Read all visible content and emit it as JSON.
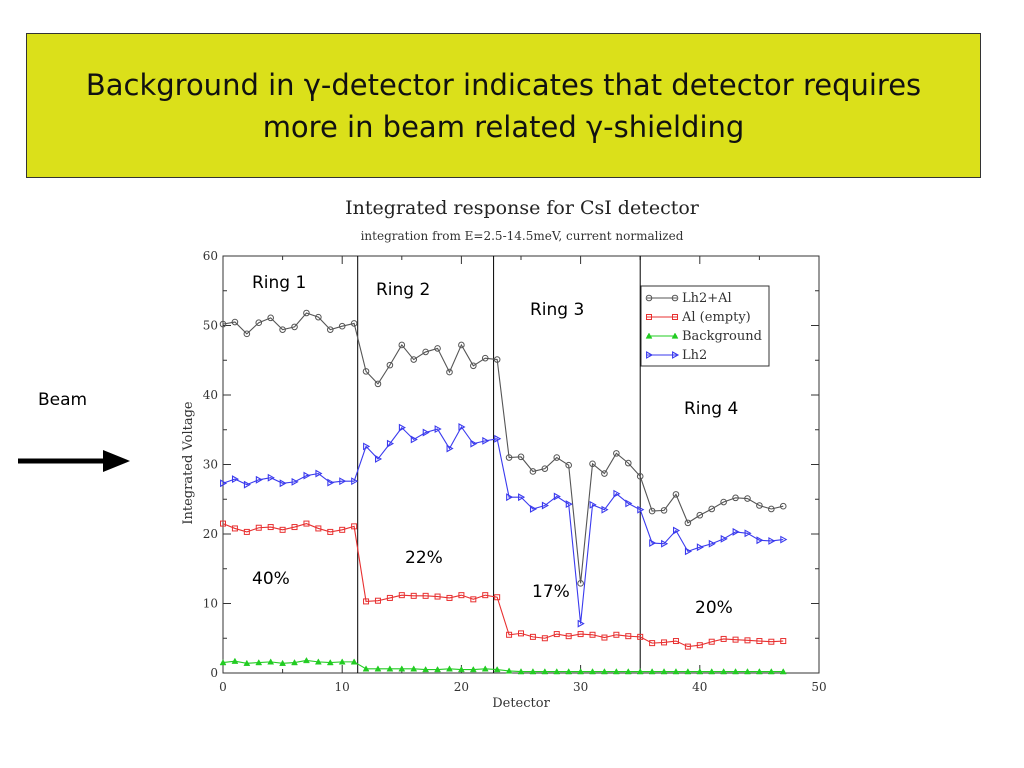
{
  "slide": {
    "title_line1": "Background in γ-detector indicates that detector requires",
    "title_line2": "more in beam related γ-shielding",
    "beam_label": "Beam"
  },
  "annotations": {
    "ring1": "Ring 1",
    "ring2": "Ring 2",
    "ring3": "Ring 3",
    "ring4": "Ring 4",
    "pct1": "40%",
    "pct2": "22%",
    "pct3": "17%",
    "pct4": "20%"
  },
  "chart_data": {
    "type": "line",
    "title": "Integrated response for CsI detector",
    "subtitle": "integration from E=2.5-14.5meV, current normalized",
    "xlabel": "Detector",
    "ylabel": "Integrated Voltage",
    "xlim": [
      0,
      50
    ],
    "ylim": [
      0,
      60
    ],
    "xticks": [
      0,
      10,
      20,
      30,
      40,
      50
    ],
    "yticks": [
      0,
      10,
      20,
      30,
      40,
      50,
      60
    ],
    "ring_boundaries": [
      11.3,
      22.7,
      35
    ],
    "legend_position": "top-right",
    "x": [
      0,
      1,
      2,
      3,
      4,
      5,
      6,
      7,
      8,
      9,
      10,
      11,
      12,
      13,
      14,
      15,
      16,
      17,
      18,
      19,
      20,
      21,
      22,
      23,
      24,
      25,
      26,
      27,
      28,
      29,
      30,
      31,
      32,
      33,
      34,
      35,
      36,
      37,
      38,
      39,
      40,
      41,
      42,
      43,
      44,
      45,
      46,
      47
    ],
    "series": [
      {
        "name": "Lh2+Al",
        "color": "#555555",
        "marker": "circle",
        "values": [
          50.2,
          50.5,
          48.8,
          50.4,
          51.1,
          49.4,
          49.8,
          51.8,
          51.2,
          49.4,
          49.9,
          50.3,
          43.4,
          41.6,
          44.3,
          47.2,
          45.1,
          46.2,
          46.7,
          43.3,
          47.2,
          44.2,
          45.3,
          45.1,
          31.0,
          31.1,
          29.0,
          29.4,
          31.0,
          29.9,
          12.9,
          30.1,
          28.7,
          31.6,
          30.2,
          28.3,
          23.3,
          23.4,
          25.7,
          21.6,
          22.7,
          23.6,
          24.6,
          25.2,
          25.1,
          24.1,
          23.6,
          24.0
        ]
      },
      {
        "name": "Al (empty)",
        "color": "#e83030",
        "marker": "square",
        "values": [
          21.5,
          20.8,
          20.3,
          20.9,
          21.0,
          20.6,
          21.0,
          21.5,
          20.8,
          20.3,
          20.6,
          21.1,
          10.3,
          10.4,
          10.8,
          11.2,
          11.1,
          11.1,
          11.0,
          10.8,
          11.2,
          10.6,
          11.2,
          10.9,
          5.5,
          5.7,
          5.2,
          5.0,
          5.6,
          5.3,
          5.6,
          5.5,
          5.1,
          5.5,
          5.3,
          5.2,
          4.3,
          4.4,
          4.6,
          3.8,
          4.0,
          4.5,
          4.9,
          4.8,
          4.7,
          4.6,
          4.5,
          4.6
        ]
      },
      {
        "name": "Background",
        "color": "#22cc22",
        "marker": "triangle-up",
        "values": [
          1.5,
          1.7,
          1.4,
          1.5,
          1.6,
          1.4,
          1.5,
          1.8,
          1.6,
          1.5,
          1.6,
          1.6,
          0.6,
          0.6,
          0.6,
          0.6,
          0.6,
          0.5,
          0.5,
          0.6,
          0.5,
          0.5,
          0.6,
          0.5,
          0.3,
          0.2,
          0.2,
          0.2,
          0.2,
          0.2,
          0.2,
          0.2,
          0.2,
          0.2,
          0.2,
          0.2,
          0.2,
          0.2,
          0.2,
          0.2,
          0.2,
          0.2,
          0.2,
          0.2,
          0.2,
          0.2,
          0.2,
          0.2
        ]
      },
      {
        "name": "Lh2",
        "color": "#3a3aee",
        "marker": "triangle-right",
        "values": [
          27.3,
          27.9,
          27.1,
          27.8,
          28.1,
          27.3,
          27.5,
          28.4,
          28.7,
          27.4,
          27.6,
          27.6,
          32.6,
          30.8,
          33.0,
          35.3,
          33.6,
          34.6,
          35.1,
          32.3,
          35.4,
          33.0,
          33.4,
          33.7,
          25.3,
          25.3,
          23.6,
          24.1,
          25.4,
          24.3,
          7.1,
          24.2,
          23.5,
          25.8,
          24.4,
          23.5,
          18.7,
          18.6,
          20.5,
          17.5,
          18.1,
          18.6,
          19.3,
          20.3,
          20.1,
          19.1,
          19.0,
          19.2
        ]
      }
    ]
  }
}
